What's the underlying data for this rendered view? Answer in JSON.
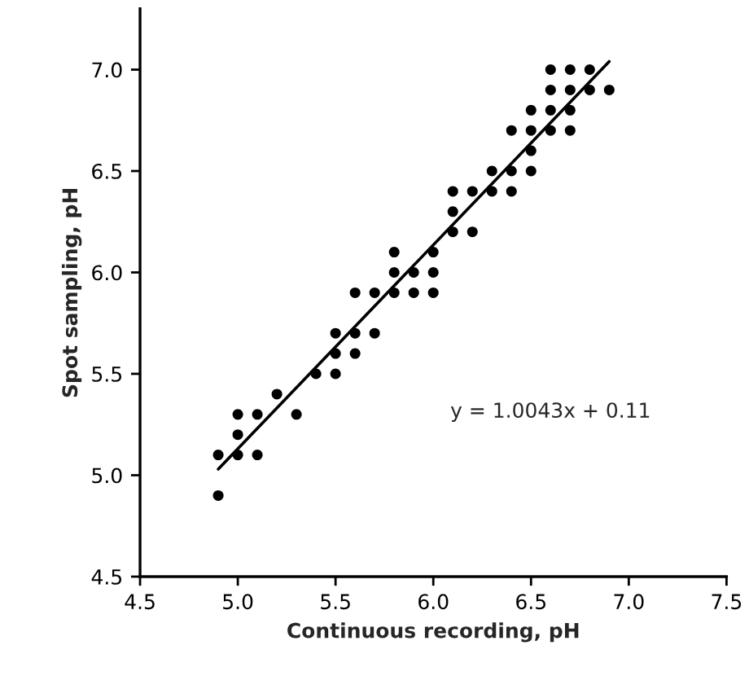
{
  "chart_data": {
    "type": "scatter",
    "xlabel": "Continuous recording, pH",
    "ylabel": "Spot sampling, pH",
    "xlim": [
      4.5,
      7.5
    ],
    "xticks": [
      {
        "value": 4.5,
        "label": "4.5"
      },
      {
        "value": 5.0,
        "label": "5.0"
      },
      {
        "value": 5.5,
        "label": "5.5"
      },
      {
        "value": 6.0,
        "label": "6.0"
      },
      {
        "value": 6.5,
        "label": "6.5"
      },
      {
        "value": 7.0,
        "label": "7.0"
      },
      {
        "value": 7.5,
        "label": "7.5"
      }
    ],
    "ylim": [
      4.5,
      7.3
    ],
    "yticks": [
      {
        "value": 4.5,
        "label": "4.5"
      },
      {
        "value": 5.0,
        "label": "5.0"
      },
      {
        "value": 5.5,
        "label": "5.5"
      },
      {
        "value": 6.0,
        "label": "6.0"
      },
      {
        "value": 6.5,
        "label": "6.5"
      },
      {
        "value": 7.0,
        "label": "7.0"
      }
    ],
    "grid": false,
    "series": [
      {
        "color": "#000000",
        "marker": "circle",
        "x": [
          6.6,
          6.7,
          6.8,
          6.6,
          6.7,
          6.8,
          6.9,
          6.5,
          6.6,
          6.7,
          6.4,
          6.5,
          6.6,
          6.7,
          6.5,
          6.3,
          6.4,
          6.5,
          6.1,
          6.2,
          6.3,
          6.4,
          6.1,
          6.1,
          6.2,
          5.8,
          6.0,
          5.8,
          5.9,
          6.0,
          5.6,
          5.7,
          5.8,
          5.9,
          6.0,
          5.5,
          5.6,
          5.7,
          5.5,
          5.6,
          5.4,
          5.5,
          5.2,
          5.0,
          5.1,
          5.3,
          5.0,
          4.9,
          5.0,
          5.1,
          4.9
        ],
        "values": [
          7.0,
          7.0,
          7.0,
          6.9,
          6.9,
          6.9,
          6.9,
          6.8,
          6.8,
          6.8,
          6.7,
          6.7,
          6.7,
          6.7,
          6.6,
          6.5,
          6.5,
          6.5,
          6.4,
          6.4,
          6.4,
          6.4,
          6.3,
          6.2,
          6.2,
          6.1,
          6.1,
          6.0,
          6.0,
          6.0,
          5.9,
          5.9,
          5.9,
          5.9,
          5.9,
          5.7,
          5.7,
          5.7,
          5.6,
          5.6,
          5.5,
          5.5,
          5.4,
          5.3,
          5.3,
          5.3,
          5.2,
          5.1,
          5.1,
          5.1,
          4.9
        ]
      },
      {
        "type": "line",
        "color": "#000000",
        "x": [
          4.9,
          6.9
        ],
        "values": [
          5.03,
          7.04
        ]
      }
    ],
    "annotations": [
      "y = 1.0043x + 0.11"
    ]
  }
}
